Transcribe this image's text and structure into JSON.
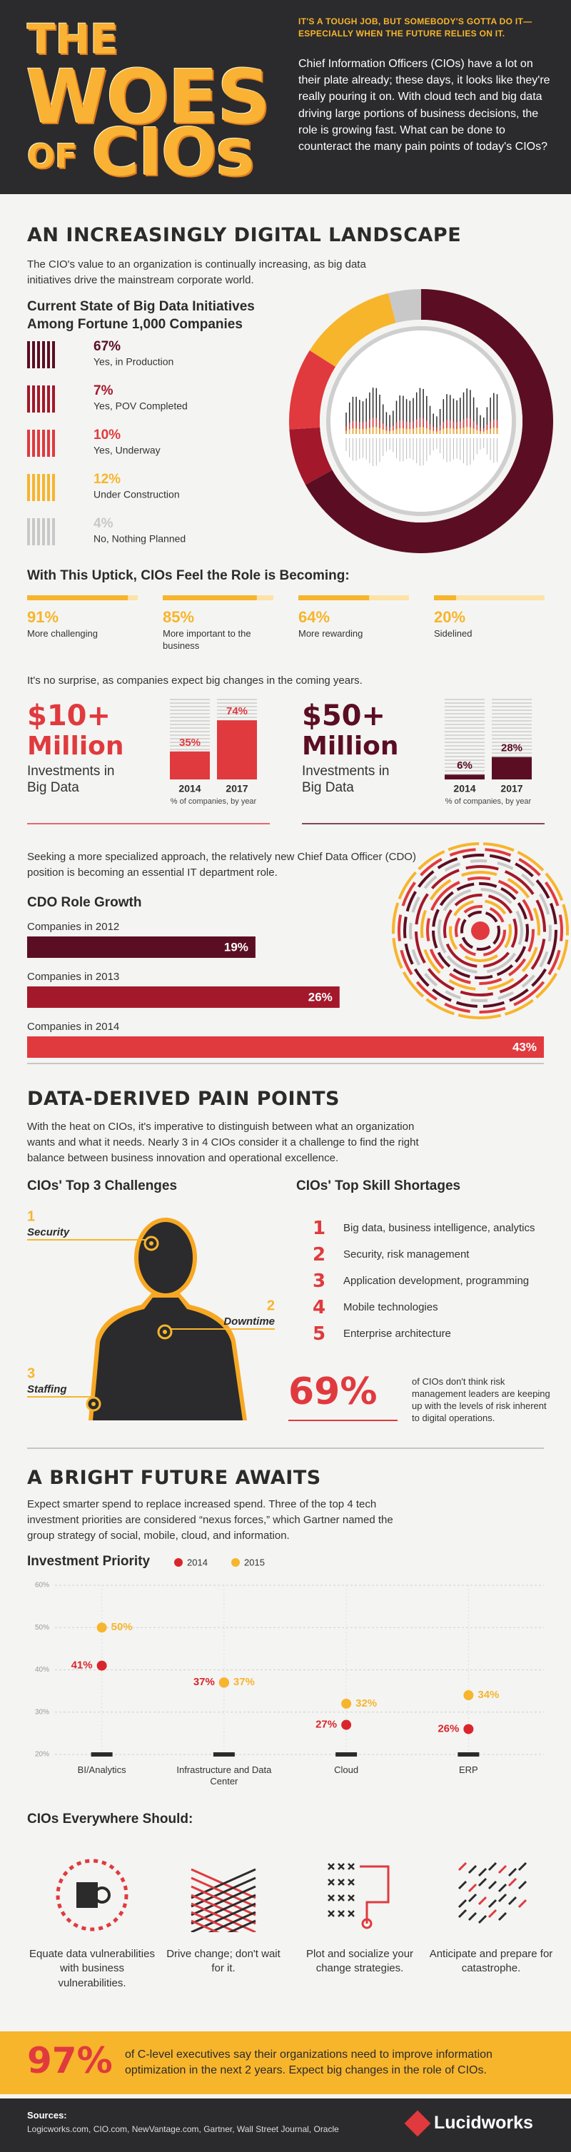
{
  "header": {
    "title": [
      "THE",
      "WOES",
      "OF",
      "CIOs"
    ],
    "tagline": "IT'S A TOUGH JOB, BUT SOMEBODY'S GOTTA DO IT—ESPECIALLY WHEN THE FUTURE RELIES ON IT.",
    "intro": "Chief Information Officers (CIOs) have a lot on their plate already; these days, it looks like they're really pouring it on. With cloud tech and big data driving large portions of business decisions, the role is growing fast. What can be done to counteract the many pain points of today's CIOs?"
  },
  "landscape": {
    "heading": "AN INCREASINGLY DIGITAL LANDSCAPE",
    "intro": "The CIO's value to an organization is continually increasing, as big data initiatives drive the mainstream corporate world.",
    "big_data": {
      "type": "pie",
      "title": "Current State of Big Data Initiatives Among Fortune 1,000 Companies",
      "categories": [
        "Yes, in Production",
        "Yes, POV Completed",
        "Yes, Underway",
        "Under Construction",
        "No, Nothing Planned"
      ],
      "values": [
        67,
        7,
        10,
        12,
        4
      ],
      "value_labels": [
        "67%",
        "7%",
        "10%",
        "12%",
        "4%"
      ],
      "colors": [
        "#5b0e23",
        "#a3182a",
        "#e03a3e",
        "#f7b52c",
        "#c8c8c8"
      ]
    },
    "role": {
      "type": "bar",
      "title": "With This Uptick, CIOs Feel the Role is Becoming:",
      "categories": [
        "More challenging",
        "More important to the business",
        "More rewarding",
        "Sidelined"
      ],
      "values": [
        91,
        85,
        64,
        20
      ],
      "value_labels": [
        "91%",
        "85%",
        "64%",
        "20%"
      ],
      "xlim": [
        0,
        100
      ],
      "color": "#f7b52c"
    },
    "expect": "It's no surprise, as companies expect big changes in the coming years.",
    "investments": [
      {
        "type": "bar",
        "amount": "$10+",
        "unit": "Million",
        "label": "Investments in Big Data",
        "categories": [
          "2014",
          "2017"
        ],
        "values": [
          35,
          74
        ],
        "value_labels": [
          "35%",
          "74%"
        ],
        "ylim": [
          0,
          100
        ],
        "note": "% of companies, by year",
        "color": "#e03a3e"
      },
      {
        "type": "bar",
        "amount": "$50+",
        "unit": "Million",
        "label": "Investments in Big Data",
        "categories": [
          "2014",
          "2017"
        ],
        "values": [
          6,
          28
        ],
        "value_labels": [
          "6%",
          "28%"
        ],
        "ylim": [
          0,
          100
        ],
        "note": "% of companies, by year",
        "color": "#5b0e23"
      }
    ],
    "cdo_intro": "Seeking a more specialized approach, the relatively new Chief Data Officer (CDO) position is becoming an essential IT department role.",
    "cdo": {
      "type": "bar",
      "title": "CDO Role Growth",
      "categories": [
        "Companies in 2012",
        "Companies in 2013",
        "Companies in 2014"
      ],
      "values": [
        19,
        26,
        43
      ],
      "value_labels": [
        "19%",
        "26%",
        "43%"
      ],
      "xlim": [
        0,
        43
      ],
      "colors": [
        "#5b0e23",
        "#a3182a",
        "#e03a3e"
      ]
    }
  },
  "pain": {
    "heading": "DATA-DERIVED PAIN POINTS",
    "intro": "With the heat on CIOs, it's imperative to distinguish between what an organization wants and what it needs. Nearly 3 in 4 CIOs consider it a challenge to find the right balance between business innovation and operational excellence.",
    "challenges": {
      "title": "CIOs' Top 3 Challenges",
      "items": [
        {
          "rank": "1",
          "label": "Security"
        },
        {
          "rank": "2",
          "label": "Downtime"
        },
        {
          "rank": "3",
          "label": "Staffing"
        }
      ]
    },
    "skills": {
      "title": "CIOs' Top Skill Shortages",
      "items": [
        {
          "rank": "1",
          "label": "Big data, business intelligence, analytics"
        },
        {
          "rank": "2",
          "label": "Security, risk management"
        },
        {
          "rank": "3",
          "label": "Application development, programming"
        },
        {
          "rank": "4",
          "label": "Mobile technologies"
        },
        {
          "rank": "5",
          "label": "Enterprise architecture"
        }
      ]
    },
    "stat": {
      "value": "69%",
      "text": "of CIOs don't think risk management leaders are keeping up with the levels of risk inherent to digital operations."
    }
  },
  "future": {
    "heading": "A BRIGHT FUTURE AWAITS",
    "intro": "Expect smarter spend to replace increased spend. Three of the top 4 tech investment priorities are considered “nexus forces,” which Gartner named the group strategy of social, mobile, cloud, and information.",
    "investment": {
      "type": "scatter",
      "title": "Investment Priority",
      "categories": [
        "BI/Analytics",
        "Infrastructure and Data Center",
        "Cloud",
        "ERP"
      ],
      "series": [
        {
          "name": "2014",
          "color": "#d9262c",
          "values": [
            41,
            37,
            27,
            26
          ],
          "value_labels": [
            "41%",
            "37%",
            "27%",
            "26%"
          ]
        },
        {
          "name": "2015",
          "color": "#f7b52c",
          "values": [
            50,
            37,
            32,
            34
          ],
          "value_labels": [
            "50%",
            "37%",
            "32%",
            "34%"
          ]
        }
      ],
      "ylim": [
        20,
        60
      ],
      "yticks": [
        {
          "value": 20,
          "label": "20%"
        },
        {
          "value": 30,
          "label": "30%"
        },
        {
          "value": 40,
          "label": "40%"
        },
        {
          "value": 50,
          "label": "50%"
        },
        {
          "value": 60,
          "label": "60%"
        }
      ],
      "grid": true
    },
    "should": {
      "title": "CIOs Everywhere Should:",
      "items": [
        "Equate data vulnerabilities with business vulnerabilities.",
        "Drive change; don't wait for it.",
        "Plot and socialize your change strategies.",
        "Anticipate and prepare for catastrophe."
      ]
    }
  },
  "footer": {
    "stat": "97%",
    "text": "of C-level executives say their organizations need to improve information optimization in the next 2 years. Expect big changes in the role of CIOs.",
    "sources_label": "Sources:",
    "sources": "Logicworks.com, CIO.com, NewVantage.com, Gartner, Wall Street Journal, Oracle",
    "brand": "Lucidworks"
  }
}
